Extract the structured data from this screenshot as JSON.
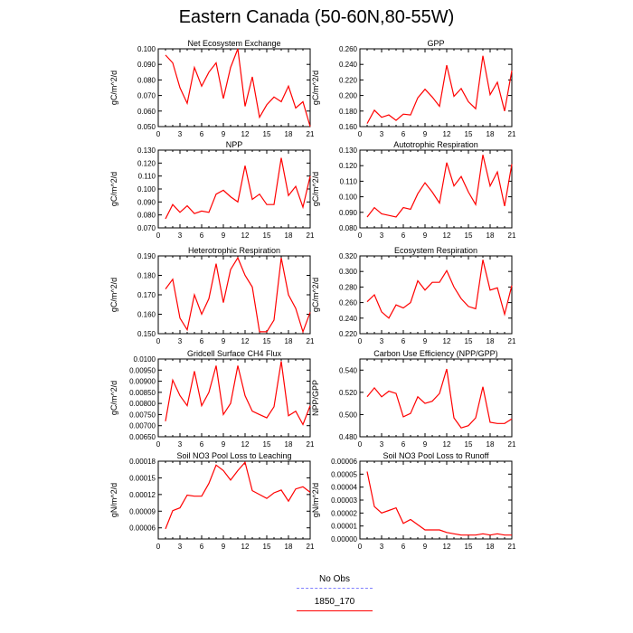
{
  "title": "Eastern Canada (50-60N,80-55W)",
  "legend": [
    {
      "label": "No Obs",
      "color": "#8080ff",
      "style": "dashed"
    },
    {
      "label": "1850_170",
      "color": "#ff0000",
      "style": "solid"
    }
  ],
  "line_color": "#ff0000",
  "chart_data": [
    {
      "type": "line",
      "title": "Net Ecosystem Exchange",
      "ylabel": "gC/m^2/d",
      "xlim": [
        0,
        21
      ],
      "xticks": [
        "0",
        "3",
        "6",
        "9",
        "12",
        "15",
        "18",
        "21"
      ],
      "ylim": [
        0.05,
        0.1
      ],
      "yticks": [
        "0.050",
        "0.060",
        "0.070",
        "0.080",
        "0.090",
        "0.100"
      ],
      "series": [
        {
          "x": [
            1,
            2,
            3,
            4,
            5,
            6,
            7,
            8,
            9,
            10,
            11,
            12,
            13,
            14,
            15,
            16,
            17,
            18,
            19,
            20,
            21
          ],
          "y": [
            0.096,
            0.091,
            0.075,
            0.065,
            0.088,
            0.076,
            0.085,
            0.091,
            0.068,
            0.088,
            0.1,
            0.063,
            0.082,
            0.056,
            0.064,
            0.069,
            0.066,
            0.076,
            0.062,
            0.066,
            0.05
          ]
        }
      ]
    },
    {
      "type": "line",
      "title": "GPP",
      "ylabel": "gC/m^2/d",
      "xlim": [
        0,
        21
      ],
      "xticks": [
        "0",
        "3",
        "6",
        "9",
        "12",
        "15",
        "18",
        "21"
      ],
      "ylim": [
        0.16,
        0.26
      ],
      "yticks": [
        "0.160",
        "0.180",
        "0.200",
        "0.220",
        "0.240",
        "0.260"
      ],
      "series": [
        {
          "x": [
            1,
            2,
            3,
            4,
            5,
            6,
            7,
            8,
            9,
            10,
            11,
            12,
            13,
            14,
            15,
            16,
            17,
            18,
            19,
            20,
            21
          ],
          "y": [
            0.164,
            0.181,
            0.172,
            0.175,
            0.168,
            0.176,
            0.175,
            0.197,
            0.208,
            0.198,
            0.186,
            0.239,
            0.199,
            0.209,
            0.192,
            0.183,
            0.251,
            0.201,
            0.217,
            0.18,
            0.232
          ]
        }
      ]
    },
    {
      "type": "line",
      "title": "NPP",
      "ylabel": "gC/m^2/d",
      "xlim": [
        0,
        21
      ],
      "xticks": [
        "0",
        "3",
        "6",
        "9",
        "12",
        "15",
        "18",
        "21"
      ],
      "ylim": [
        0.07,
        0.13
      ],
      "yticks": [
        "0.070",
        "0.080",
        "0.090",
        "0.100",
        "0.110",
        "0.120",
        "0.130"
      ],
      "series": [
        {
          "x": [
            1,
            2,
            3,
            4,
            5,
            6,
            7,
            8,
            9,
            10,
            11,
            12,
            13,
            14,
            15,
            16,
            17,
            18,
            19,
            20,
            21
          ],
          "y": [
            0.077,
            0.088,
            0.082,
            0.087,
            0.081,
            0.083,
            0.082,
            0.096,
            0.099,
            0.094,
            0.09,
            0.118,
            0.092,
            0.096,
            0.088,
            0.088,
            0.124,
            0.095,
            0.102,
            0.086,
            0.11
          ]
        }
      ]
    },
    {
      "type": "line",
      "title": "Autotrophic Respiration",
      "ylabel": "gC/m^2/d",
      "xlim": [
        0,
        21
      ],
      "xticks": [
        "0",
        "3",
        "6",
        "9",
        "12",
        "15",
        "18",
        "21"
      ],
      "ylim": [
        0.08,
        0.13
      ],
      "yticks": [
        "0.080",
        "0.090",
        "0.100",
        "0.110",
        "0.120",
        "0.130"
      ],
      "series": [
        {
          "x": [
            1,
            2,
            3,
            4,
            5,
            6,
            7,
            8,
            9,
            10,
            11,
            12,
            13,
            14,
            15,
            16,
            17,
            18,
            19,
            20,
            21
          ],
          "y": [
            0.087,
            0.093,
            0.089,
            0.088,
            0.087,
            0.093,
            0.092,
            0.102,
            0.109,
            0.103,
            0.096,
            0.122,
            0.107,
            0.113,
            0.103,
            0.095,
            0.127,
            0.107,
            0.116,
            0.094,
            0.121
          ]
        }
      ]
    },
    {
      "type": "line",
      "title": "Heterotrophic Respiration",
      "ylabel": "gC/m^2/d",
      "xlim": [
        0,
        21
      ],
      "xticks": [
        "0",
        "3",
        "6",
        "9",
        "12",
        "15",
        "18",
        "21"
      ],
      "ylim": [
        0.15,
        0.19
      ],
      "yticks": [
        "0.150",
        "0.160",
        "0.170",
        "0.180",
        "0.190"
      ],
      "series": [
        {
          "x": [
            1,
            2,
            3,
            4,
            5,
            6,
            7,
            8,
            9,
            10,
            11,
            12,
            13,
            14,
            15,
            16,
            17,
            18,
            19,
            20,
            21
          ],
          "y": [
            0.173,
            0.178,
            0.158,
            0.152,
            0.17,
            0.16,
            0.168,
            0.186,
            0.166,
            0.183,
            0.189,
            0.18,
            0.174,
            0.151,
            0.151,
            0.157,
            0.189,
            0.17,
            0.163,
            0.151,
            0.161
          ]
        }
      ]
    },
    {
      "type": "line",
      "title": "Ecosystem Respiration",
      "ylabel": "gC/m^2/d",
      "xlim": [
        0,
        21
      ],
      "xticks": [
        "0",
        "3",
        "6",
        "9",
        "12",
        "15",
        "18",
        "21"
      ],
      "ylim": [
        0.22,
        0.32
      ],
      "yticks": [
        "0.220",
        "0.240",
        "0.260",
        "0.280",
        "0.300",
        "0.320"
      ],
      "series": [
        {
          "x": [
            1,
            2,
            3,
            4,
            5,
            6,
            7,
            8,
            9,
            10,
            11,
            12,
            13,
            14,
            15,
            16,
            17,
            18,
            19,
            20,
            21
          ],
          "y": [
            0.261,
            0.27,
            0.248,
            0.24,
            0.257,
            0.253,
            0.26,
            0.288,
            0.276,
            0.286,
            0.286,
            0.301,
            0.28,
            0.265,
            0.255,
            0.252,
            0.315,
            0.276,
            0.279,
            0.245,
            0.282
          ]
        }
      ]
    },
    {
      "type": "line",
      "title": "Gridcell Surface CH4 Flux",
      "ylabel": "gC/m^2/d",
      "xlim": [
        0,
        21
      ],
      "xticks": [
        "0",
        "3",
        "6",
        "9",
        "12",
        "15",
        "18",
        "21"
      ],
      "ylim": [
        0.0065,
        0.01
      ],
      "yticks": [
        "0.00650",
        "0.00700",
        "0.00750",
        "0.00800",
        "0.00850",
        "0.00900",
        "0.00950",
        "0.0100"
      ],
      "series": [
        {
          "x": [
            1,
            2,
            3,
            4,
            5,
            6,
            7,
            8,
            9,
            10,
            11,
            12,
            13,
            14,
            15,
            16,
            17,
            18,
            19,
            20,
            21
          ],
          "y": [
            0.0072,
            0.00905,
            0.00835,
            0.0079,
            0.00945,
            0.0079,
            0.0085,
            0.0097,
            0.0075,
            0.008,
            0.0097,
            0.00835,
            0.00765,
            0.0075,
            0.00735,
            0.00785,
            0.0099,
            0.00745,
            0.00765,
            0.00705,
            0.0079
          ]
        }
      ]
    },
    {
      "type": "line",
      "title": "Carbon Use Efficiency (NPP/GPP)",
      "ylabel": "NPP/GPP",
      "xlim": [
        0,
        21
      ],
      "xticks": [
        "0",
        "3",
        "6",
        "9",
        "12",
        "15",
        "18",
        "21"
      ],
      "ylim": [
        0.48,
        0.55
      ],
      "yticks": [
        "0.480",
        "0.500",
        "0.520",
        "0.540"
      ],
      "series": [
        {
          "x": [
            1,
            2,
            3,
            4,
            5,
            6,
            7,
            8,
            9,
            10,
            11,
            12,
            13,
            14,
            15,
            16,
            17,
            18,
            19,
            20,
            21
          ],
          "y": [
            0.516,
            0.524,
            0.516,
            0.521,
            0.519,
            0.498,
            0.501,
            0.516,
            0.51,
            0.512,
            0.519,
            0.541,
            0.497,
            0.488,
            0.49,
            0.497,
            0.525,
            0.493,
            0.492,
            0.492,
            0.496
          ]
        }
      ]
    },
    {
      "type": "line",
      "title": "Soil NO3 Pool Loss to Leaching",
      "ylabel": "gN/m^2/d",
      "xlim": [
        0,
        21
      ],
      "xticks": [
        "0",
        "3",
        "6",
        "9",
        "12",
        "15",
        "18",
        "21"
      ],
      "ylim": [
        4e-05,
        0.00018
      ],
      "yticks": [
        "0.00006",
        "0.00009",
        "0.00012",
        "0.00015",
        "0.00018"
      ],
      "series": [
        {
          "x": [
            1,
            2,
            3,
            4,
            5,
            6,
            7,
            8,
            9,
            10,
            11,
            12,
            13,
            14,
            15,
            16,
            17,
            18,
            19,
            20,
            21
          ],
          "y": [
            5.8e-05,
            9.1e-05,
            9.6e-05,
            0.000119,
            0.000117,
            0.000117,
            0.00014,
            0.000173,
            0.000163,
            0.000146,
            0.000163,
            0.000178,
            0.000127,
            0.00012,
            0.000113,
            0.000123,
            0.000128,
            0.000108,
            0.00013,
            0.000134,
            0.000124
          ]
        }
      ]
    },
    {
      "type": "line",
      "title": "Soil NO3 Pool Loss to Runoff",
      "ylabel": "gN/m^2/d",
      "xlim": [
        0,
        21
      ],
      "xticks": [
        "0",
        "3",
        "6",
        "9",
        "12",
        "15",
        "18",
        "21"
      ],
      "ylim": [
        0.0,
        6e-05
      ],
      "yticks": [
        "0.00000",
        "0.00001",
        "0.00002",
        "0.00003",
        "0.00004",
        "0.00005",
        "0.00006"
      ],
      "series": [
        {
          "x": [
            1,
            2,
            3,
            4,
            5,
            6,
            7,
            8,
            9,
            10,
            11,
            12,
            13,
            14,
            15,
            16,
            17,
            18,
            19,
            20,
            21
          ],
          "y": [
            5.2e-05,
            2.5e-05,
            2e-05,
            2.2e-05,
            2.4e-05,
            1.2e-05,
            1.5e-05,
            1.1e-05,
            7e-06,
            7e-06,
            7e-06,
            5e-06,
            4e-06,
            3e-06,
            3e-06,
            3e-06,
            4e-06,
            3e-06,
            4e-06,
            3e-06,
            3e-06
          ]
        }
      ]
    }
  ]
}
